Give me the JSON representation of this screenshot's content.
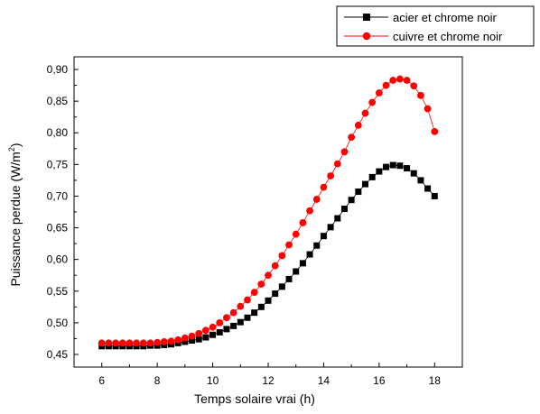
{
  "chart_data": {
    "type": "scatter",
    "title": "",
    "xlabel": "Temps solaire vrai (h)",
    "ylabel_main": "Puissance perdue (W/m",
    "ylabel_sup": "2",
    "ylabel_close": ")",
    "xlim": [
      5,
      19
    ],
    "ylim": [
      0.43,
      0.92
    ],
    "xticks": [
      6,
      8,
      10,
      12,
      14,
      16,
      18
    ],
    "xtick_labels": [
      "6",
      "8",
      "10",
      "12",
      "14",
      "16",
      "18"
    ],
    "yticks": [
      0.45,
      0.5,
      0.55,
      0.6,
      0.65,
      0.7,
      0.75,
      0.8,
      0.85,
      0.9
    ],
    "ytick_labels": [
      "0,45",
      "0,50",
      "0,55",
      "0,60",
      "0,65",
      "0,70",
      "0,75",
      "0,80",
      "0,85",
      "0,90"
    ],
    "grid": false,
    "legend_position": "top-right",
    "x": [
      6.0,
      6.25,
      6.5,
      6.75,
      7.0,
      7.25,
      7.5,
      7.75,
      8.0,
      8.25,
      8.5,
      8.75,
      9.0,
      9.25,
      9.5,
      9.75,
      10.0,
      10.25,
      10.5,
      10.75,
      11.0,
      11.25,
      11.5,
      11.75,
      12.0,
      12.25,
      12.5,
      12.75,
      13.0,
      13.25,
      13.5,
      13.75,
      14.0,
      14.25,
      14.5,
      14.75,
      15.0,
      15.25,
      15.5,
      15.75,
      16.0,
      16.25,
      16.5,
      16.75,
      17.0,
      17.25,
      17.5,
      17.75,
      18.0
    ],
    "series": [
      {
        "name": "acier et chrome noir",
        "color": "#000000",
        "marker": "square",
        "values": [
          0.463,
          0.463,
          0.463,
          0.463,
          0.463,
          0.463,
          0.463,
          0.464,
          0.464,
          0.465,
          0.466,
          0.468,
          0.47,
          0.472,
          0.474,
          0.477,
          0.481,
          0.485,
          0.49,
          0.495,
          0.501,
          0.508,
          0.516,
          0.525,
          0.535,
          0.546,
          0.557,
          0.569,
          0.581,
          0.594,
          0.608,
          0.622,
          0.637,
          0.651,
          0.665,
          0.68,
          0.694,
          0.707,
          0.719,
          0.73,
          0.739,
          0.746,
          0.749,
          0.748,
          0.744,
          0.736,
          0.725,
          0.712,
          0.7
        ]
      },
      {
        "name": "cuivre et chrome noir",
        "color": "#ff0000",
        "marker": "circle",
        "values": [
          0.468,
          0.468,
          0.468,
          0.468,
          0.468,
          0.468,
          0.468,
          0.468,
          0.469,
          0.47,
          0.471,
          0.473,
          0.476,
          0.479,
          0.483,
          0.488,
          0.493,
          0.5,
          0.508,
          0.516,
          0.526,
          0.536,
          0.548,
          0.561,
          0.575,
          0.59,
          0.606,
          0.623,
          0.64,
          0.658,
          0.677,
          0.695,
          0.714,
          0.732,
          0.751,
          0.77,
          0.793,
          0.812,
          0.831,
          0.848,
          0.863,
          0.875,
          0.883,
          0.885,
          0.883,
          0.874,
          0.859,
          0.838,
          0.802
        ]
      }
    ]
  }
}
